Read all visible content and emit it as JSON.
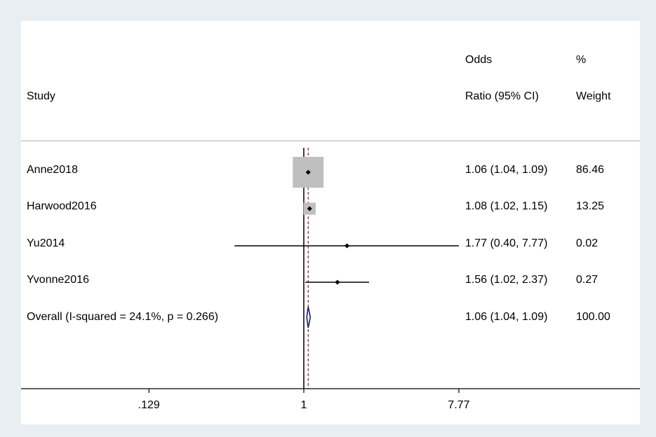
{
  "headers": {
    "study": "Study",
    "or_line1": "Odds",
    "or_line2": "Ratio (95% CI)",
    "weight_line1": "%",
    "weight_line2": "Weight"
  },
  "chart_data": {
    "type": "forest",
    "scale": "log",
    "null_line": 1,
    "pooled_estimate_line": 1.06,
    "x_ticks": [
      {
        "value": 0.129,
        "label": ".129"
      },
      {
        "value": 1,
        "label": "1"
      },
      {
        "value": 7.77,
        "label": "7.77"
      }
    ],
    "studies": [
      {
        "name": "Anne2018",
        "or": 1.06,
        "lower": 1.04,
        "upper": 1.09,
        "ci_text": "1.06 (1.04, 1.09)",
        "weight": 86.46,
        "weight_text": "86.46"
      },
      {
        "name": "Harwood2016",
        "or": 1.08,
        "lower": 1.02,
        "upper": 1.15,
        "ci_text": "1.08 (1.02, 1.15)",
        "weight": 13.25,
        "weight_text": "13.25"
      },
      {
        "name": "Yu2014",
        "or": 1.77,
        "lower": 0.4,
        "upper": 7.77,
        "ci_text": "1.77 (0.40, 7.77)",
        "weight": 0.02,
        "weight_text": "0.02"
      },
      {
        "name": "Yvonne2016",
        "or": 1.56,
        "lower": 1.02,
        "upper": 2.37,
        "ci_text": "1.56 (1.02, 2.37)",
        "weight": 0.27,
        "weight_text": "0.27"
      }
    ],
    "overall": {
      "label": "Overall  (I-squared = 24.1%, p = 0.266)",
      "or": 1.06,
      "lower": 1.04,
      "upper": 1.09,
      "ci_text": "1.06 (1.04, 1.09)",
      "weight_text": "100.00"
    },
    "colors": {
      "box": "#bfbfbf",
      "point": "#000000",
      "ci_line": "#000000",
      "diamond": "#1a1a6e",
      "pooled_line": "#b22222",
      "separator": "#c8c8c8",
      "background": "#e9eef2",
      "panel": "#ffffff"
    }
  }
}
